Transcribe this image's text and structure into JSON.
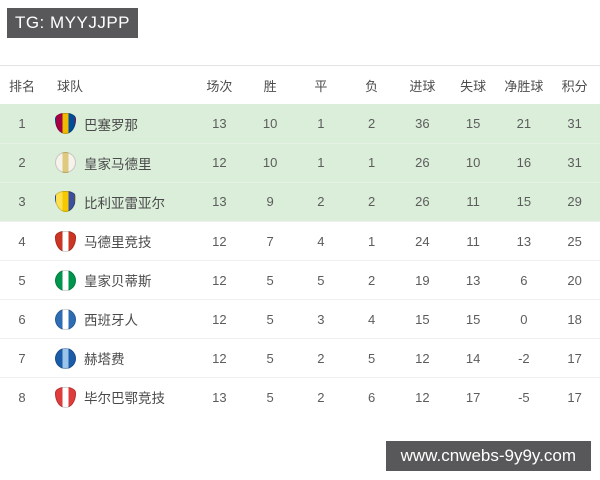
{
  "header": {
    "tag_label": "TG: MYYJJPP",
    "bg": "#58585a",
    "text_color": "#ffffff"
  },
  "table": {
    "highlight_bg": "#daeeda",
    "columns": [
      {
        "key": "rank",
        "label": "排名"
      },
      {
        "key": "team",
        "label": "球队"
      },
      {
        "key": "played",
        "label": "场次"
      },
      {
        "key": "wins",
        "label": "胜"
      },
      {
        "key": "draws",
        "label": "平"
      },
      {
        "key": "losses",
        "label": "负"
      },
      {
        "key": "goals_for",
        "label": "进球"
      },
      {
        "key": "goals_against",
        "label": "失球"
      },
      {
        "key": "goal_diff",
        "label": "净胜球"
      },
      {
        "key": "points",
        "label": "积分"
      }
    ],
    "rows": [
      {
        "rank": "1",
        "team": "巴塞罗那",
        "played": "13",
        "wins": "10",
        "draws": "1",
        "losses": "2",
        "goals_for": "36",
        "goals_against": "15",
        "goal_diff": "21",
        "points": "31",
        "highlighted": true,
        "badge": {
          "shape": "shield",
          "colors": [
            "#a50044",
            "#edbb00",
            "#004d98"
          ]
        }
      },
      {
        "rank": "2",
        "team": "皇家马德里",
        "played": "12",
        "wins": "10",
        "draws": "1",
        "losses": "1",
        "goals_for": "26",
        "goals_against": "10",
        "goal_diff": "16",
        "points": "31",
        "highlighted": true,
        "badge": {
          "shape": "circle",
          "colors": [
            "#f5f3ec",
            "#dfc97e",
            "#f5f3ec"
          ]
        }
      },
      {
        "rank": "3",
        "team": "比利亚雷亚尔",
        "played": "13",
        "wins": "9",
        "draws": "2",
        "losses": "2",
        "goals_for": "26",
        "goals_against": "11",
        "goal_diff": "15",
        "points": "29",
        "highlighted": true,
        "badge": {
          "shape": "shield",
          "colors": [
            "#ffe14f",
            "#f6c800",
            "#3b4f9e"
          ]
        }
      },
      {
        "rank": "4",
        "team": "马德里竞技",
        "played": "12",
        "wins": "7",
        "draws": "4",
        "losses": "1",
        "goals_for": "24",
        "goals_against": "11",
        "goal_diff": "13",
        "points": "25",
        "highlighted": false,
        "badge": {
          "shape": "shield",
          "colors": [
            "#cb3524",
            "#ffffff",
            "#cb3524"
          ]
        }
      },
      {
        "rank": "5",
        "team": "皇家贝蒂斯",
        "played": "12",
        "wins": "5",
        "draws": "5",
        "losses": "2",
        "goals_for": "19",
        "goals_against": "13",
        "goal_diff": "6",
        "points": "20",
        "highlighted": false,
        "badge": {
          "shape": "circle",
          "colors": [
            "#00954c",
            "#ffffff",
            "#00954c"
          ]
        }
      },
      {
        "rank": "6",
        "team": "西班牙人",
        "played": "12",
        "wins": "5",
        "draws": "3",
        "losses": "4",
        "goals_for": "15",
        "goals_against": "15",
        "goal_diff": "0",
        "points": "18",
        "highlighted": false,
        "badge": {
          "shape": "circle",
          "colors": [
            "#2e6db4",
            "#ffffff",
            "#2e6db4"
          ]
        }
      },
      {
        "rank": "7",
        "team": "赫塔费",
        "played": "12",
        "wins": "5",
        "draws": "2",
        "losses": "5",
        "goals_for": "12",
        "goals_against": "14",
        "goal_diff": "-2",
        "points": "17",
        "highlighted": false,
        "badge": {
          "shape": "circle",
          "colors": [
            "#1b5ca8",
            "#9cc3ea",
            "#1b5ca8"
          ]
        }
      },
      {
        "rank": "8",
        "team": "毕尔巴鄂竞技",
        "played": "13",
        "wins": "5",
        "draws": "2",
        "losses": "6",
        "goals_for": "12",
        "goals_against": "17",
        "goal_diff": "-5",
        "points": "17",
        "highlighted": false,
        "badge": {
          "shape": "shield",
          "colors": [
            "#df3c3c",
            "#ffffff",
            "#df3c3c"
          ]
        }
      }
    ]
  },
  "watermark": {
    "label": "www.cnwebs-9y9y.com",
    "bg": "#58585a",
    "text_color": "#ffffff"
  }
}
